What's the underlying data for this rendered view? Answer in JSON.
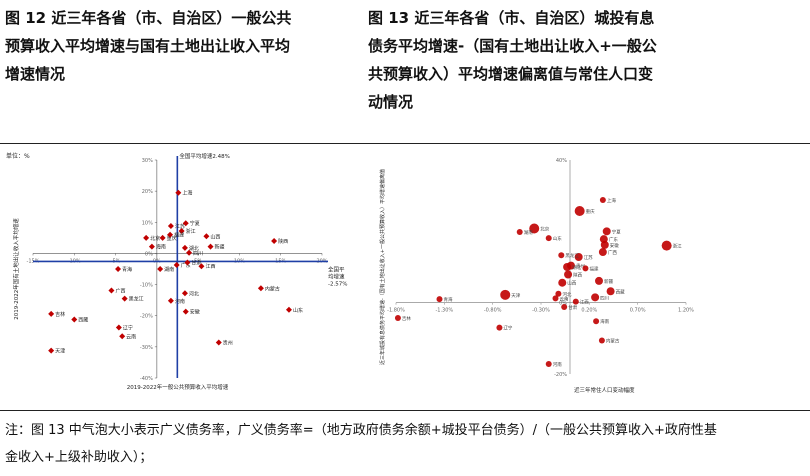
{
  "titles": {
    "left": {
      "line1": "图 12 近三年各省（市、自治区）一般公共",
      "line2": "预算收入平均增速与国有土地出让收入平均",
      "line3": "增速情况"
    },
    "right": {
      "line1": "图 13 近三年各省（市、自治区）城投有息",
      "line2": "债务平均增速-（国有土地出让收入+一般公",
      "line3": "共预算收入）平均增速偏离值与常住人口变",
      "line4": "动情况"
    }
  },
  "note": {
    "line1": "注：图 13 中气泡大小表示广义债务率，广义债务率=（地方政府债务余额+城投平台债务）/（一般公共预算收入+政府性基",
    "line2": "金收入+上级补助收入）；"
  },
  "colors": {
    "marker": "#c00000",
    "axis": "#1f3fa6",
    "grid": "#d9d9d9",
    "text": "#222222"
  },
  "chart_data": [
    {
      "type": "scatter",
      "unit_label": "单位：%",
      "xlabel": "2019-2022年一般公共预算收入平均增速",
      "ylabel": "2019-2022年国有土地出让收入平均增速",
      "xlim": [
        -15,
        20
      ],
      "ylim": [
        -40,
        30
      ],
      "x_ticks": [
        "-15%",
        "-10%",
        "-5%",
        "0%",
        "5%",
        "10%",
        "15%",
        "20%"
      ],
      "y_ticks": [
        "-40%",
        "-30%",
        "-20%",
        "-10%",
        "0%",
        "10%",
        "20%",
        "30%"
      ],
      "ref_lines": [
        {
          "axis": "x",
          "value": 2.48,
          "label": "全国平均增速2.48%"
        },
        {
          "axis": "y",
          "value": -2.57,
          "label_lines": [
            "全国平",
            "均增速",
            "-2.57%"
          ]
        }
      ],
      "points": [
        {
          "label": "上海",
          "x": 2.6,
          "y": 19.5
        },
        {
          "label": "江苏",
          "x": 1.7,
          "y": 8.8
        },
        {
          "label": "宁夏",
          "x": 3.5,
          "y": 9.7
        },
        {
          "label": "浙江",
          "x": 3.0,
          "y": 7.2
        },
        {
          "label": "北京",
          "x": -1.3,
          "y": 5.0
        },
        {
          "label": "重庆",
          "x": 0.7,
          "y": 5.0
        },
        {
          "label": "福建",
          "x": 1.6,
          "y": 6.0
        },
        {
          "label": "海南",
          "x": -0.6,
          "y": 2.2
        },
        {
          "label": "湖北",
          "x": 3.4,
          "y": 1.8
        },
        {
          "label": "山西",
          "x": 6.0,
          "y": 5.5
        },
        {
          "label": "新疆",
          "x": 6.5,
          "y": 2.2
        },
        {
          "label": "四川",
          "x": 3.9,
          "y": 0.2
        },
        {
          "label": "陕西",
          "x": 14.2,
          "y": 4.0
        },
        {
          "label": "青海",
          "x": -4.7,
          "y": -5.0
        },
        {
          "label": "广东",
          "x": 2.4,
          "y": -3.7
        },
        {
          "label": "甘肃",
          "x": 3.7,
          "y": -2.9
        },
        {
          "label": "江西",
          "x": 5.4,
          "y": -4.1
        },
        {
          "label": "湖南",
          "x": 0.4,
          "y": -5.0
        },
        {
          "label": "广西",
          "x": -5.5,
          "y": -11.9
        },
        {
          "label": "黑龙江",
          "x": -3.9,
          "y": -14.5
        },
        {
          "label": "河北",
          "x": 3.4,
          "y": -12.8
        },
        {
          "label": "河南",
          "x": 1.7,
          "y": -15.2
        },
        {
          "label": "安徽",
          "x": 3.5,
          "y": -18.7
        },
        {
          "label": "辽宁",
          "x": -4.6,
          "y": -23.8
        },
        {
          "label": "云南",
          "x": -4.2,
          "y": -26.6
        },
        {
          "label": "贵州",
          "x": 7.5,
          "y": -28.6
        },
        {
          "label": "内蒙古",
          "x": 12.6,
          "y": -11.2
        },
        {
          "label": "山东",
          "x": 16.0,
          "y": -18.1
        },
        {
          "label": "吉林",
          "x": -12.8,
          "y": -19.4
        },
        {
          "label": "西藏",
          "x": -10.0,
          "y": -21.2
        },
        {
          "label": "天津",
          "x": -12.8,
          "y": -31.2
        }
      ]
    },
    {
      "type": "scatter",
      "xlabel": "近三年常住人口变动幅度",
      "ylabel": "近三年城投有息债务平均增速-（国有土地出让收入+一般公共预算收入）平均增速偏离值",
      "xlim": [
        -1.8,
        1.2
      ],
      "ylim": [
        -20,
        40
      ],
      "x_ticks": [
        "-1.80%",
        "-1.30%",
        "-0.80%",
        "-0.30%",
        "0.20%",
        "0.70%",
        "1.20%"
      ],
      "y_ticks": [
        "-20%",
        "0%",
        "40%"
      ],
      "points": [
        {
          "label": "北京",
          "x": -0.37,
          "y": 20.8
        },
        {
          "label": "湖南",
          "x": -0.52,
          "y": 19.8
        },
        {
          "label": "山东",
          "x": -0.22,
          "y": 18.1
        },
        {
          "label": "重庆",
          "x": 0.1,
          "y": 25.7
        },
        {
          "label": "宁夏",
          "x": 0.38,
          "y": 20.0
        },
        {
          "label": "安徽",
          "x": 0.36,
          "y": 16.2
        },
        {
          "label": "广西",
          "x": 0.34,
          "y": 14.2
        },
        {
          "label": "浙江",
          "x": 1.0,
          "y": 16.0
        },
        {
          "label": "上海",
          "x": 0.34,
          "y": 28.8
        },
        {
          "label": "江苏",
          "x": 0.09,
          "y": 12.8
        },
        {
          "label": "广东",
          "x": 0.35,
          "y": 17.8
        },
        {
          "label": "贵州",
          "x": 0.01,
          "y": 10.4
        },
        {
          "label": "黑龙江",
          "x": -0.09,
          "y": 13.3
        },
        {
          "label": "湖北",
          "x": -0.03,
          "y": 10.0
        },
        {
          "label": "陕西",
          "x": -0.02,
          "y": 7.9
        },
        {
          "label": "福建",
          "x": 0.16,
          "y": 9.6
        },
        {
          "label": "山西",
          "x": -0.08,
          "y": 5.6
        },
        {
          "label": "河北",
          "x": -0.12,
          "y": 2.5
        },
        {
          "label": "新疆",
          "x": 0.3,
          "y": 6.1
        },
        {
          "label": "四川",
          "x": 0.26,
          "y": 1.5
        },
        {
          "label": "江西",
          "x": 0.06,
          "y": 0.3
        },
        {
          "label": "天津",
          "x": -0.67,
          "y": 2.2
        },
        {
          "label": "青海",
          "x": -1.35,
          "y": 1.0
        },
        {
          "label": "西藏",
          "x": 0.42,
          "y": 3.2
        },
        {
          "label": "云南",
          "x": -0.15,
          "y": 1.2
        },
        {
          "label": "甘肃",
          "x": -0.06,
          "y": -1.2
        },
        {
          "label": "吉林",
          "x": -1.78,
          "y": -4.3
        },
        {
          "label": "辽宁",
          "x": -0.73,
          "y": -7.0
        },
        {
          "label": "海南",
          "x": 0.27,
          "y": -5.2
        },
        {
          "label": "内蒙古",
          "x": 0.33,
          "y": -10.6
        },
        {
          "label": "河南",
          "x": -0.22,
          "y": -17.2
        }
      ]
    }
  ]
}
